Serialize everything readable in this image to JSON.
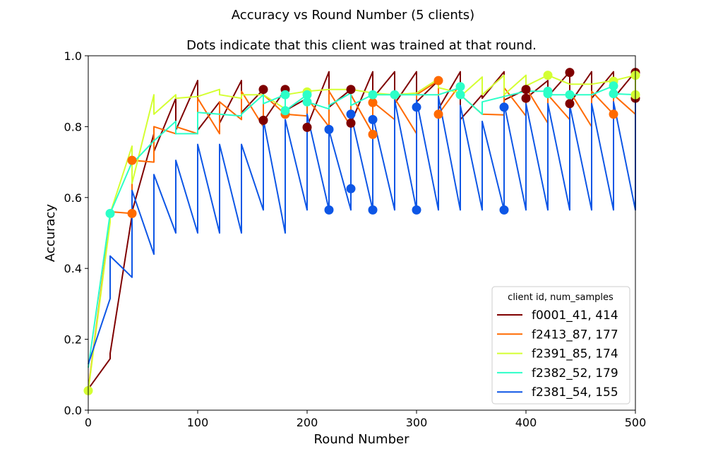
{
  "chart_data": {
    "type": "line",
    "title": "Accuracy vs Round Number (5 clients)",
    "subtitle": "Dots indicate that this client was trained at that round.",
    "xlabel": "Round Number",
    "ylabel": "Accuracy",
    "xlim": [
      0,
      500
    ],
    "ylim": [
      0.0,
      1.0
    ],
    "xticks": [
      "0",
      "100",
      "200",
      "300",
      "400",
      "500"
    ],
    "yticks": [
      "0.0",
      "0.2",
      "0.4",
      "0.6",
      "0.8",
      "1.0"
    ],
    "grid": false,
    "legend": {
      "title": "client id, num_samples",
      "placement": "lower-right"
    },
    "series": [
      {
        "name": "f0001_41, 414",
        "color": "#7f0000",
        "points": [
          [
            0,
            0.06
          ],
          [
            20,
            0.145
          ],
          [
            20,
            0.16
          ],
          [
            40,
            0.55
          ],
          [
            40,
            0.56
          ],
          [
            60,
            0.78
          ],
          [
            60,
            0.73
          ],
          [
            80,
            0.88
          ],
          [
            80,
            0.79
          ],
          [
            100,
            0.93
          ],
          [
            100,
            0.79
          ],
          [
            120,
            0.87
          ],
          [
            120,
            0.81
          ],
          [
            140,
            0.93
          ],
          [
            140,
            0.84
          ],
          [
            160,
            0.905
          ],
          [
            160,
            0.815
          ],
          [
            180,
            0.905
          ],
          [
            180,
            0.845
          ],
          [
            200,
            0.88
          ],
          [
            200,
            0.8
          ],
          [
            220,
            0.955
          ],
          [
            220,
            0.855
          ],
          [
            240,
            0.905
          ],
          [
            240,
            0.81
          ],
          [
            260,
            0.955
          ],
          [
            260,
            0.88
          ],
          [
            280,
            0.955
          ],
          [
            280,
            0.865
          ],
          [
            300,
            0.955
          ],
          [
            300,
            0.87
          ],
          [
            320,
            0.93
          ],
          [
            320,
            0.85
          ],
          [
            340,
            0.955
          ],
          [
            340,
            0.82
          ],
          [
            360,
            0.89
          ],
          [
            360,
            0.88
          ],
          [
            380,
            0.955
          ],
          [
            380,
            0.875
          ],
          [
            400,
            0.905
          ],
          [
            400,
            0.88
          ],
          [
            420,
            0.93
          ],
          [
            420,
            0.885
          ],
          [
            440,
            0.955
          ],
          [
            440,
            0.865
          ],
          [
            460,
            0.955
          ],
          [
            460,
            0.88
          ],
          [
            480,
            0.955
          ],
          [
            480,
            0.88
          ],
          [
            500,
            0.955
          ],
          [
            500,
            0.88
          ]
        ],
        "dots": [
          [
            160,
            0.905
          ],
          [
            160,
            0.818
          ],
          [
            180,
            0.905
          ],
          [
            200,
            0.798
          ],
          [
            240,
            0.905
          ],
          [
            240,
            0.81
          ],
          [
            400,
            0.905
          ],
          [
            400,
            0.88
          ],
          [
            440,
            0.953
          ],
          [
            440,
            0.865
          ],
          [
            500,
            0.953
          ],
          [
            500,
            0.88
          ]
        ]
      },
      {
        "name": "f2413_87, 177",
        "color": "#ff6a00",
        "points": [
          [
            0,
            0.06
          ],
          [
            20,
            0.54
          ],
          [
            20,
            0.56
          ],
          [
            40,
            0.555
          ],
          [
            40,
            0.705
          ],
          [
            60,
            0.7
          ],
          [
            60,
            0.8
          ],
          [
            80,
            0.78
          ],
          [
            80,
            0.8
          ],
          [
            100,
            0.78
          ],
          [
            100,
            0.88
          ],
          [
            120,
            0.78
          ],
          [
            120,
            0.87
          ],
          [
            140,
            0.82
          ],
          [
            140,
            0.9
          ],
          [
            160,
            0.8
          ],
          [
            160,
            0.89
          ],
          [
            180,
            0.835
          ],
          [
            200,
            0.83
          ],
          [
            200,
            0.88
          ],
          [
            220,
            0.8
          ],
          [
            220,
            0.9
          ],
          [
            240,
            0.8
          ],
          [
            240,
            0.89
          ],
          [
            260,
            0.78
          ],
          [
            260,
            0.87
          ],
          [
            280,
            0.82
          ],
          [
            280,
            0.88
          ],
          [
            300,
            0.78
          ],
          [
            300,
            0.89
          ],
          [
            320,
            0.93
          ],
          [
            320,
            0.835
          ],
          [
            340,
            0.92
          ],
          [
            340,
            0.89
          ],
          [
            360,
            0.835
          ],
          [
            380,
            0.833
          ],
          [
            380,
            0.91
          ],
          [
            400,
            0.83
          ],
          [
            400,
            0.91
          ],
          [
            420,
            0.81
          ],
          [
            420,
            0.89
          ],
          [
            440,
            0.82
          ],
          [
            440,
            0.9
          ],
          [
            460,
            0.8
          ],
          [
            460,
            0.9
          ],
          [
            480,
            0.835
          ],
          [
            480,
            0.89
          ],
          [
            500,
            0.835
          ]
        ],
        "dots": [
          [
            40,
            0.705
          ],
          [
            40,
            0.555
          ],
          [
            180,
            0.835
          ],
          [
            260,
            0.868
          ],
          [
            260,
            0.778
          ],
          [
            320,
            0.93
          ],
          [
            320,
            0.835
          ],
          [
            480,
            0.835
          ]
        ]
      },
      {
        "name": "f2391_85, 174",
        "color": "#d4ff32",
        "points": [
          [
            0,
            0.055
          ],
          [
            20,
            0.53
          ],
          [
            20,
            0.555
          ],
          [
            40,
            0.745
          ],
          [
            40,
            0.64
          ],
          [
            60,
            0.89
          ],
          [
            60,
            0.835
          ],
          [
            80,
            0.89
          ],
          [
            80,
            0.88
          ],
          [
            100,
            0.885
          ],
          [
            120,
            0.905
          ],
          [
            120,
            0.89
          ],
          [
            140,
            0.88
          ],
          [
            140,
            0.89
          ],
          [
            160,
            0.89
          ],
          [
            180,
            0.85
          ],
          [
            180,
            0.89
          ],
          [
            200,
            0.9
          ],
          [
            220,
            0.905
          ],
          [
            240,
            0.905
          ],
          [
            260,
            0.895
          ],
          [
            280,
            0.89
          ],
          [
            300,
            0.895
          ],
          [
            320,
            0.935
          ],
          [
            320,
            0.91
          ],
          [
            340,
            0.895
          ],
          [
            340,
            0.885
          ],
          [
            360,
            0.94
          ],
          [
            360,
            0.89
          ],
          [
            380,
            0.945
          ],
          [
            380,
            0.89
          ],
          [
            400,
            0.945
          ],
          [
            400,
            0.915
          ],
          [
            420,
            0.945
          ],
          [
            440,
            0.92
          ],
          [
            460,
            0.92
          ],
          [
            480,
            0.93
          ],
          [
            500,
            0.945
          ],
          [
            500,
            0.89
          ]
        ],
        "dots": [
          [
            0,
            0.055
          ],
          [
            200,
            0.898
          ],
          [
            420,
            0.945
          ],
          [
            480,
            0.928
          ],
          [
            500,
            0.945
          ],
          [
            500,
            0.89
          ]
        ]
      },
      {
        "name": "f2382_52, 179",
        "color": "#2cffc8",
        "points": [
          [
            0,
            0.12
          ],
          [
            20,
            0.555
          ],
          [
            40,
            0.7
          ],
          [
            40,
            0.695
          ],
          [
            60,
            0.76
          ],
          [
            80,
            0.815
          ],
          [
            80,
            0.78
          ],
          [
            100,
            0.78
          ],
          [
            100,
            0.84
          ],
          [
            120,
            0.835
          ],
          [
            140,
            0.83
          ],
          [
            140,
            0.835
          ],
          [
            160,
            0.89
          ],
          [
            160,
            0.865
          ],
          [
            180,
            0.89
          ],
          [
            180,
            0.845
          ],
          [
            200,
            0.89
          ],
          [
            200,
            0.87
          ],
          [
            220,
            0.85
          ],
          [
            220,
            0.86
          ],
          [
            240,
            0.895
          ],
          [
            240,
            0.86
          ],
          [
            260,
            0.89
          ],
          [
            280,
            0.89
          ],
          [
            300,
            0.89
          ],
          [
            320,
            0.89
          ],
          [
            340,
            0.91
          ],
          [
            340,
            0.89
          ],
          [
            360,
            0.835
          ],
          [
            360,
            0.87
          ],
          [
            380,
            0.885
          ],
          [
            400,
            0.9
          ],
          [
            420,
            0.9
          ],
          [
            420,
            0.89
          ],
          [
            440,
            0.89
          ],
          [
            460,
            0.89
          ],
          [
            480,
            0.915
          ],
          [
            480,
            0.893
          ],
          [
            500,
            0.89
          ]
        ],
        "dots": [
          [
            20,
            0.555
          ],
          [
            180,
            0.89
          ],
          [
            180,
            0.845
          ],
          [
            200,
            0.89
          ],
          [
            200,
            0.87
          ],
          [
            260,
            0.89
          ],
          [
            280,
            0.89
          ],
          [
            340,
            0.913
          ],
          [
            340,
            0.89
          ],
          [
            420,
            0.9
          ],
          [
            420,
            0.893
          ],
          [
            440,
            0.89
          ],
          [
            480,
            0.915
          ],
          [
            480,
            0.893
          ]
        ]
      },
      {
        "name": "f2381_54, 155",
        "color": "#0d56e6",
        "points": [
          [
            0,
            0.13
          ],
          [
            20,
            0.315
          ],
          [
            20,
            0.435
          ],
          [
            40,
            0.375
          ],
          [
            40,
            0.62
          ],
          [
            60,
            0.44
          ],
          [
            60,
            0.665
          ],
          [
            80,
            0.5
          ],
          [
            80,
            0.705
          ],
          [
            100,
            0.5
          ],
          [
            100,
            0.75
          ],
          [
            120,
            0.5
          ],
          [
            120,
            0.75
          ],
          [
            140,
            0.5
          ],
          [
            140,
            0.75
          ],
          [
            160,
            0.565
          ],
          [
            160,
            0.82
          ],
          [
            180,
            0.5
          ],
          [
            180,
            0.82
          ],
          [
            200,
            0.565
          ],
          [
            200,
            0.835
          ],
          [
            220,
            0.565
          ],
          [
            220,
            0.79
          ],
          [
            240,
            0.565
          ],
          [
            240,
            0.835
          ],
          [
            260,
            0.565
          ],
          [
            260,
            0.83
          ],
          [
            280,
            0.565
          ],
          [
            280,
            0.875
          ],
          [
            300,
            0.565
          ],
          [
            300,
            0.875
          ],
          [
            320,
            0.565
          ],
          [
            320,
            0.885
          ],
          [
            340,
            0.565
          ],
          [
            340,
            0.86
          ],
          [
            360,
            0.565
          ],
          [
            360,
            0.815
          ],
          [
            380,
            0.565
          ],
          [
            380,
            0.865
          ],
          [
            400,
            0.565
          ],
          [
            400,
            0.865
          ],
          [
            420,
            0.565
          ],
          [
            420,
            0.865
          ],
          [
            440,
            0.565
          ],
          [
            440,
            0.86
          ],
          [
            460,
            0.565
          ],
          [
            460,
            0.865
          ],
          [
            480,
            0.565
          ],
          [
            480,
            0.87
          ],
          [
            500,
            0.565
          ],
          [
            500,
            0.87
          ]
        ],
        "dots": [
          [
            220,
            0.565
          ],
          [
            220,
            0.792
          ],
          [
            240,
            0.835
          ],
          [
            240,
            0.625
          ],
          [
            260,
            0.82
          ],
          [
            260,
            0.565
          ],
          [
            300,
            0.855
          ],
          [
            300,
            0.565
          ],
          [
            380,
            0.855
          ],
          [
            380,
            0.565
          ]
        ]
      }
    ]
  }
}
